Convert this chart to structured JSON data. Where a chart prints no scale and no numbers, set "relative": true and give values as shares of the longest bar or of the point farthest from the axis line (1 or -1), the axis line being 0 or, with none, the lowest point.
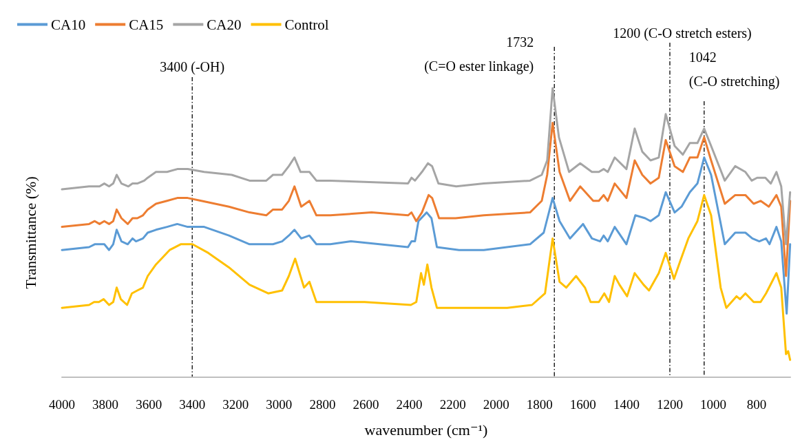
{
  "chart_data": {
    "type": "line",
    "relative": true,
    "xlabel": "wavenumber (cm⁻¹)",
    "ylabel": "Transmittance (%)",
    "xlim": [
      4000,
      645
    ],
    "xticks": [
      4000,
      3800,
      3600,
      3400,
      3200,
      3000,
      2800,
      2600,
      2400,
      2200,
      2000,
      1800,
      1600,
      1400,
      1200,
      1000,
      800
    ],
    "legend": "top left",
    "grid": false,
    "marker": "none",
    "line_style": "solid",
    "ref_lines": [
      {
        "axis": "x",
        "value": 3400,
        "label": "3400 (-OH)"
      },
      {
        "axis": "x",
        "value": 1732,
        "label": "1732\n(C=O ester linkage)"
      },
      {
        "axis": "x",
        "value": 1200,
        "label": "1200 (C-O stretch esters)"
      },
      {
        "axis": "x",
        "value": 1042,
        "label": "1042\n(C-O stretching)"
      }
    ],
    "series": [
      {
        "name": "CA10",
        "color": "#5b9bd5",
        "x": [
          4000,
          3875,
          3849,
          3827,
          3805,
          3783,
          3764,
          3748,
          3726,
          3697,
          3675,
          3659,
          3627,
          3605,
          3567,
          3516,
          3469,
          3421,
          3345,
          3231,
          3136,
          3050,
          3028,
          2986,
          2955,
          2929,
          2898,
          2860,
          2828,
          2764,
          2669,
          2406,
          2390,
          2374,
          2358,
          2320,
          2298,
          2273,
          2171,
          2057,
          1844,
          1781,
          1740,
          1708,
          1660,
          1600,
          1559,
          1521,
          1505,
          1486,
          1454,
          1400,
          1359,
          1314,
          1289,
          1251,
          1219,
          1178,
          1146,
          1108,
          1073,
          1042,
          1010,
          947,
          899,
          852,
          820,
          788,
          757,
          741,
          709,
          687,
          662,
          646
        ],
        "values": [
          0.44,
          0.45,
          0.46,
          0.46,
          0.46,
          0.44,
          0.46,
          0.51,
          0.47,
          0.46,
          0.48,
          0.47,
          0.48,
          0.5,
          0.51,
          0.52,
          0.53,
          0.52,
          0.52,
          0.49,
          0.46,
          0.46,
          0.46,
          0.47,
          0.49,
          0.51,
          0.48,
          0.49,
          0.46,
          0.46,
          0.47,
          0.45,
          0.47,
          0.47,
          0.54,
          0.57,
          0.55,
          0.45,
          0.44,
          0.44,
          0.46,
          0.5,
          0.62,
          0.54,
          0.48,
          0.53,
          0.48,
          0.47,
          0.49,
          0.47,
          0.52,
          0.46,
          0.56,
          0.55,
          0.54,
          0.56,
          0.64,
          0.57,
          0.59,
          0.64,
          0.67,
          0.76,
          0.7,
          0.46,
          0.5,
          0.5,
          0.48,
          0.47,
          0.48,
          0.46,
          0.52,
          0.47,
          0.22,
          0.46
        ]
      },
      {
        "name": "CA15",
        "color": "#ed7d31",
        "x": [
          4000,
          3875,
          3849,
          3827,
          3805,
          3783,
          3764,
          3748,
          3726,
          3697,
          3675,
          3653,
          3627,
          3605,
          3567,
          3516,
          3469,
          3421,
          3358,
          3231,
          3136,
          3059,
          3028,
          2986,
          2955,
          2929,
          2898,
          2860,
          2828,
          2764,
          2574,
          2406,
          2390,
          2368,
          2342,
          2311,
          2295,
          2263,
          2187,
          2057,
          1844,
          1790,
          1765,
          1740,
          1708,
          1660,
          1613,
          1553,
          1527,
          1505,
          1486,
          1454,
          1400,
          1362,
          1327,
          1289,
          1251,
          1219,
          1178,
          1140,
          1108,
          1073,
          1042,
          1010,
          947,
          899,
          852,
          814,
          782,
          744,
          709,
          687,
          665,
          646
        ],
        "values": [
          0.52,
          0.53,
          0.54,
          0.53,
          0.54,
          0.53,
          0.54,
          0.58,
          0.55,
          0.53,
          0.55,
          0.55,
          0.56,
          0.58,
          0.6,
          0.61,
          0.62,
          0.62,
          0.61,
          0.59,
          0.57,
          0.56,
          0.58,
          0.58,
          0.61,
          0.66,
          0.59,
          0.61,
          0.56,
          0.56,
          0.57,
          0.56,
          0.57,
          0.54,
          0.57,
          0.63,
          0.62,
          0.55,
          0.55,
          0.56,
          0.57,
          0.61,
          0.7,
          0.88,
          0.71,
          0.61,
          0.66,
          0.61,
          0.61,
          0.63,
          0.61,
          0.67,
          0.62,
          0.75,
          0.7,
          0.67,
          0.69,
          0.82,
          0.73,
          0.71,
          0.76,
          0.76,
          0.83,
          0.75,
          0.6,
          0.63,
          0.63,
          0.6,
          0.61,
          0.59,
          0.63,
          0.59,
          0.35,
          0.61
        ]
      },
      {
        "name": "CA20",
        "color": "#a5a5a5",
        "x": [
          4000,
          3875,
          3849,
          3827,
          3805,
          3783,
          3764,
          3748,
          3726,
          3694,
          3675,
          3653,
          3621,
          3605,
          3567,
          3516,
          3469,
          3421,
          3345,
          3218,
          3136,
          3059,
          3028,
          2986,
          2955,
          2929,
          2901,
          2860,
          2828,
          2764,
          2406,
          2390,
          2374,
          2342,
          2314,
          2295,
          2266,
          2184,
          2057,
          1844,
          1790,
          1765,
          1740,
          1711,
          1664,
          1613,
          1559,
          1527,
          1505,
          1486,
          1454,
          1400,
          1362,
          1327,
          1289,
          1251,
          1219,
          1178,
          1140,
          1108,
          1073,
          1042,
          1010,
          947,
          899,
          852,
          823,
          798,
          760,
          735,
          709,
          687,
          665,
          646
        ],
        "values": [
          0.65,
          0.66,
          0.66,
          0.66,
          0.67,
          0.66,
          0.67,
          0.7,
          0.67,
          0.66,
          0.67,
          0.67,
          0.68,
          0.69,
          0.71,
          0.71,
          0.72,
          0.72,
          0.71,
          0.7,
          0.68,
          0.68,
          0.7,
          0.7,
          0.73,
          0.76,
          0.71,
          0.71,
          0.68,
          0.68,
          0.67,
          0.69,
          0.68,
          0.71,
          0.74,
          0.73,
          0.67,
          0.66,
          0.67,
          0.68,
          0.7,
          0.75,
          1.0,
          0.83,
          0.71,
          0.74,
          0.71,
          0.71,
          0.72,
          0.71,
          0.76,
          0.72,
          0.86,
          0.78,
          0.75,
          0.76,
          0.91,
          0.8,
          0.77,
          0.81,
          0.81,
          0.86,
          0.8,
          0.68,
          0.73,
          0.71,
          0.68,
          0.69,
          0.69,
          0.67,
          0.71,
          0.66,
          0.46,
          0.64
        ]
      },
      {
        "name": "Control",
        "color": "#ffc000",
        "x": [
          4000,
          3875,
          3852,
          3830,
          3808,
          3783,
          3764,
          3748,
          3729,
          3700,
          3678,
          3653,
          3627,
          3605,
          3567,
          3504,
          3453,
          3399,
          3326,
          3231,
          3136,
          3050,
          2986,
          2955,
          2926,
          2885,
          2860,
          2828,
          2764,
          2606,
          2393,
          2368,
          2346,
          2333,
          2317,
          2298,
          2273,
          2162,
          1949,
          1835,
          1775,
          1740,
          1708,
          1677,
          1632,
          1591,
          1565,
          1527,
          1502,
          1480,
          1454,
          1432,
          1397,
          1362,
          1321,
          1296,
          1251,
          1219,
          1181,
          1153,
          1115,
          1073,
          1042,
          1010,
          966,
          940,
          893,
          877,
          852,
          814,
          782,
          757,
          709,
          687,
          665,
          655,
          646
        ],
        "values": [
          0.24,
          0.25,
          0.26,
          0.26,
          0.27,
          0.25,
          0.26,
          0.31,
          0.27,
          0.25,
          0.29,
          0.3,
          0.31,
          0.35,
          0.39,
          0.44,
          0.46,
          0.46,
          0.43,
          0.38,
          0.32,
          0.29,
          0.3,
          0.35,
          0.41,
          0.31,
          0.33,
          0.26,
          0.26,
          0.26,
          0.25,
          0.26,
          0.36,
          0.32,
          0.39,
          0.31,
          0.24,
          0.24,
          0.24,
          0.25,
          0.29,
          0.48,
          0.33,
          0.31,
          0.35,
          0.31,
          0.26,
          0.26,
          0.29,
          0.26,
          0.35,
          0.32,
          0.28,
          0.36,
          0.32,
          0.3,
          0.36,
          0.43,
          0.34,
          0.4,
          0.48,
          0.54,
          0.63,
          0.56,
          0.31,
          0.24,
          0.28,
          0.27,
          0.29,
          0.26,
          0.26,
          0.29,
          0.36,
          0.31,
          0.08,
          0.09,
          0.06
        ]
      }
    ]
  }
}
